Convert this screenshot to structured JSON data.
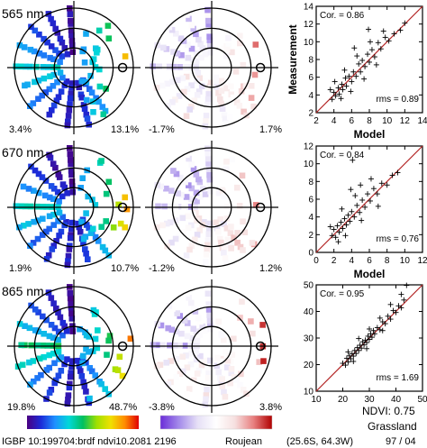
{
  "rows": [
    {
      "band": "565 nm",
      "refl_min": "3.4%",
      "refl_max": "13.1%",
      "diff_min": "-1.7%",
      "diff_max": "1.7%"
    },
    {
      "band": "670 nm",
      "refl_min": "1.9%",
      "refl_max": "10.7%",
      "diff_min": "-1.2%",
      "diff_max": "1.2%"
    },
    {
      "band": "865 nm",
      "refl_min": "19.8%",
      "refl_max": "48.7%",
      "diff_min": "-3.8%",
      "diff_max": "3.8%"
    }
  ],
  "footer": {
    "left": "IGBP  10:199704:brdf  ndvi10.2081  2196",
    "model_name": "Roujean",
    "coords": "(25.6S, 64.3W)",
    "date": "97 / 04",
    "ndvi": "NDVI: 0.75",
    "landcover": "Grassland"
  },
  "colors": {
    "refl_ramp": [
      "#4b0082",
      "#1c2bd8",
      "#1e90ff",
      "#00d8d8",
      "#00c060",
      "#a0e000",
      "#f0e000",
      "#ff8c00",
      "#e00000"
    ],
    "diff_ramp": [
      "#6a2cd8",
      "#a48bea",
      "#e6e0f6",
      "#ffffff",
      "#f6e0e0",
      "#e88080",
      "#b00000"
    ],
    "fit_line": "#b22222"
  },
  "chart_data": [
    {
      "type": "scatter",
      "title": "",
      "xlabel": "Model",
      "ylabel": "Measurement",
      "xlim": [
        2,
        14
      ],
      "ylim": [
        2,
        14
      ],
      "xticks": [
        "2",
        "4",
        "6",
        "8",
        "10",
        "12",
        "14"
      ],
      "yticks": [
        "2",
        "4",
        "6",
        "8",
        "10",
        "12",
        "14"
      ],
      "corr": "Cor. = 0.86",
      "rms": "rms = 0.89",
      "points": [
        [
          3.8,
          3.5
        ],
        [
          4,
          4.3
        ],
        [
          4.2,
          3.9
        ],
        [
          4.5,
          4.8
        ],
        [
          4.6,
          4.1
        ],
        [
          4.9,
          5.2
        ],
        [
          5,
          4.6
        ],
        [
          5.3,
          5.9
        ],
        [
          5.4,
          5
        ],
        [
          5.7,
          6.1
        ],
        [
          6,
          5.5
        ],
        [
          6.2,
          6.6
        ],
        [
          6.5,
          6.1
        ],
        [
          6.8,
          7.5
        ],
        [
          7,
          6.6
        ],
        [
          7.2,
          7.9
        ],
        [
          7.5,
          7.2
        ],
        [
          7.8,
          8.6
        ],
        [
          8,
          7.7
        ],
        [
          8.3,
          9.1
        ],
        [
          8.6,
          8.3
        ],
        [
          9,
          9.9
        ],
        [
          9.3,
          9.2
        ],
        [
          9.8,
          10.5
        ],
        [
          10.2,
          10.1
        ],
        [
          10.8,
          10.9
        ],
        [
          11.5,
          11.3
        ],
        [
          12,
          12.1
        ],
        [
          3.6,
          4.6
        ],
        [
          4.1,
          5.5
        ],
        [
          4.8,
          3.6
        ],
        [
          5.2,
          6.8
        ],
        [
          5.9,
          4.4
        ],
        [
          6.6,
          8.4
        ],
        [
          7.4,
          5.8
        ],
        [
          8.1,
          10
        ],
        [
          8.8,
          7.4
        ],
        [
          9.6,
          11.2
        ],
        [
          6.3,
          9.3
        ],
        [
          7.9,
          11.4
        ]
      ]
    },
    {
      "type": "scatter",
      "title": "",
      "xlabel": "Model",
      "ylabel": "",
      "xlim": [
        0,
        12
      ],
      "ylim": [
        0,
        12
      ],
      "xticks": [
        "0",
        "2",
        "4",
        "6",
        "8",
        "10",
        "12"
      ],
      "yticks": [
        "0",
        "2",
        "4",
        "6",
        "8",
        "10",
        "12"
      ],
      "corr": "Cor. = 0.84",
      "rms": "rms = 0.76",
      "points": [
        [
          1.8,
          1.9
        ],
        [
          2,
          2.6
        ],
        [
          2.2,
          1.7
        ],
        [
          2.4,
          3
        ],
        [
          2.6,
          2.3
        ],
        [
          2.8,
          3.4
        ],
        [
          3,
          2.7
        ],
        [
          3.2,
          3.8
        ],
        [
          3.4,
          3.1
        ],
        [
          3.6,
          4.2
        ],
        [
          3.8,
          3.5
        ],
        [
          4,
          4.6
        ],
        [
          4.3,
          4
        ],
        [
          4.6,
          5.3
        ],
        [
          4.9,
          4.5
        ],
        [
          5.2,
          5.9
        ],
        [
          5.5,
          5.1
        ],
        [
          5.8,
          6.6
        ],
        [
          6.1,
          5.8
        ],
        [
          6.5,
          7.2
        ],
        [
          6.9,
          6.6
        ],
        [
          7.4,
          7.8
        ],
        [
          8,
          7.6
        ],
        [
          8.6,
          8.7
        ],
        [
          9.2,
          9
        ],
        [
          1.6,
          2.9
        ],
        [
          2.9,
          4.9
        ],
        [
          3.3,
          1.9
        ],
        [
          4.4,
          6.4
        ],
        [
          5.1,
          3.6
        ],
        [
          6.2,
          8.3
        ],
        [
          7,
          5.2
        ],
        [
          5,
          7.6
        ],
        [
          3.9,
          7.1
        ],
        [
          4.1,
          10.4
        ],
        [
          2.5,
          1.2
        ]
      ]
    },
    {
      "type": "scatter",
      "title": "",
      "xlabel": "",
      "ylabel": "",
      "xlim": [
        10,
        50
      ],
      "ylim": [
        10,
        50
      ],
      "xticks": [
        "10",
        "20",
        "30",
        "40",
        "50"
      ],
      "yticks": [
        "10",
        "20",
        "30",
        "40",
        "50"
      ],
      "corr": "Cor. = 0.95",
      "rms": "rms = 1.69",
      "points": [
        [
          20,
          20.5
        ],
        [
          21,
          19.8
        ],
        [
          21.5,
          22.4
        ],
        [
          22,
          21
        ],
        [
          22.5,
          23.3
        ],
        [
          23,
          22.2
        ],
        [
          23.5,
          24.1
        ],
        [
          24,
          23.2
        ],
        [
          24.5,
          25.3
        ],
        [
          25,
          24.2
        ],
        [
          25.5,
          26.4
        ],
        [
          26,
          25.3
        ],
        [
          26.5,
          27.3
        ],
        [
          27,
          26.2
        ],
        [
          27.5,
          28.6
        ],
        [
          28,
          27.4
        ],
        [
          28.5,
          29.2
        ],
        [
          29,
          28.3
        ],
        [
          29.5,
          30.7
        ],
        [
          30,
          29.5
        ],
        [
          30.5,
          31.6
        ],
        [
          31,
          30.3
        ],
        [
          31.5,
          32.8
        ],
        [
          32,
          31.6
        ],
        [
          33,
          33.9
        ],
        [
          34,
          33.1
        ],
        [
          35,
          36.1
        ],
        [
          36,
          35.4
        ],
        [
          37,
          38.2
        ],
        [
          38,
          37.1
        ],
        [
          39,
          40.3
        ],
        [
          40,
          39.6
        ],
        [
          41,
          42.1
        ],
        [
          42,
          41.4
        ],
        [
          43,
          44.3
        ],
        [
          22,
          24.8
        ],
        [
          26,
          29.8
        ],
        [
          30,
          33.4
        ],
        [
          34,
          37.5
        ],
        [
          38,
          42.6
        ],
        [
          42,
          46.4
        ],
        [
          24,
          21.2
        ],
        [
          29,
          26
        ],
        [
          35,
          32.8
        ],
        [
          44,
          49.8
        ]
      ]
    }
  ]
}
